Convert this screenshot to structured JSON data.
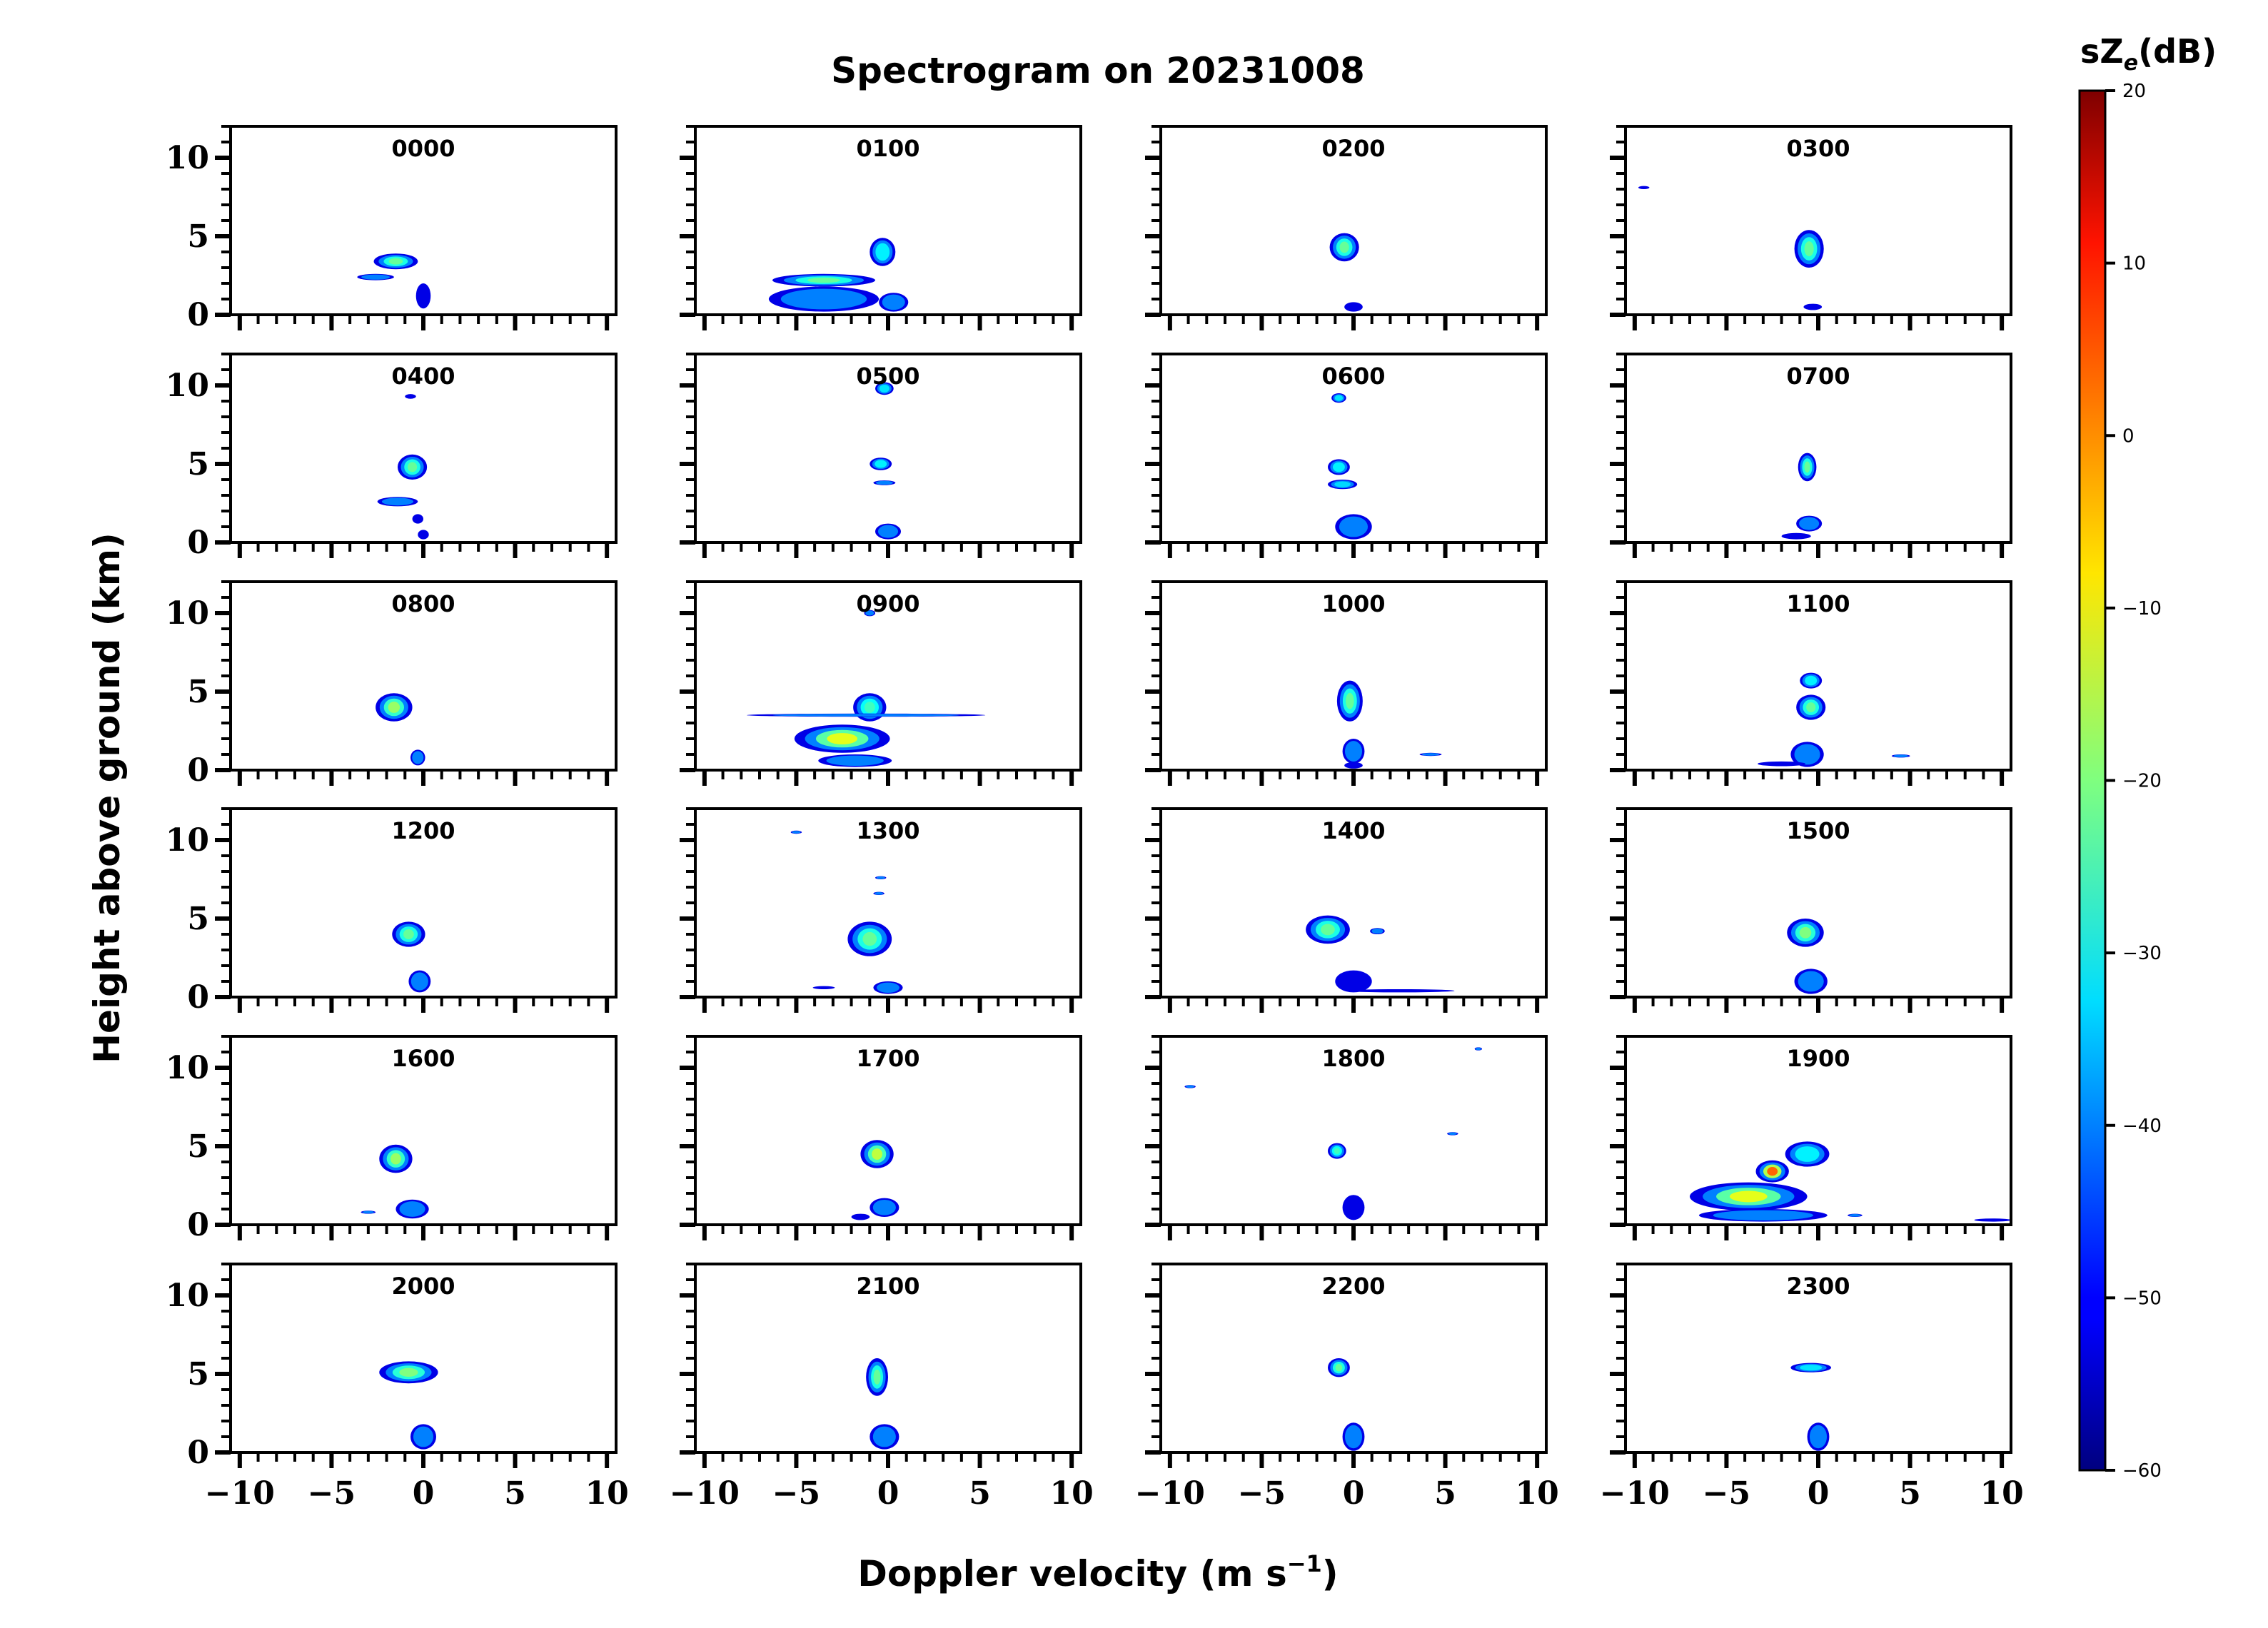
{
  "chart_data": {
    "type": "heatmap",
    "title": "Spectrogram on 20231008",
    "xlabel": "Doppler velocity (m s",
    "xlabel_superscript": "−1",
    "xlabel_close": ")",
    "ylabel": "Height above ground (km)",
    "xlim": [
      -10.5,
      10.5
    ],
    "ylim": [
      0,
      12
    ],
    "x_ticks": [
      -10,
      -5,
      0,
      5,
      10
    ],
    "x_tick_labels": [
      "−10",
      "−5",
      "0",
      "5",
      "10"
    ],
    "y_ticks": [
      0,
      5,
      10
    ],
    "y_tick_labels": [
      "0",
      "5",
      "10"
    ],
    "colorbar": {
      "label_main": "sZ",
      "label_sub": "e",
      "label_unit": "(dB)",
      "range": [
        -60,
        20
      ],
      "ticks": [
        20,
        10,
        0,
        -10,
        -20,
        -30,
        -40,
        -50,
        -60
      ],
      "tick_labels": [
        "20",
        "10",
        "0",
        "−10",
        "−20",
        "−30",
        "−40",
        "−50",
        "−60"
      ],
      "colormap": "jet"
    },
    "panels": [
      {
        "label": "0000",
        "blobs": [
          [
            -1.5,
            3.4,
            1.2,
            0.5,
            -22
          ],
          [
            -2.6,
            2.4,
            1.0,
            0.2,
            -40
          ],
          [
            0,
            1.2,
            0.4,
            0.8,
            -50
          ]
        ]
      },
      {
        "label": "0100",
        "blobs": [
          [
            -3.5,
            2.2,
            2.8,
            0.4,
            -22
          ],
          [
            -0.3,
            4.0,
            0.7,
            0.9,
            -28
          ],
          [
            -3.5,
            1.0,
            3.0,
            0.8,
            -38
          ],
          [
            0.3,
            0.8,
            0.8,
            0.6,
            -45
          ]
        ]
      },
      {
        "label": "0200",
        "blobs": [
          [
            -0.5,
            4.3,
            0.8,
            0.9,
            -22
          ],
          [
            0,
            0.5,
            0.5,
            0.3,
            -50
          ]
        ]
      },
      {
        "label": "0300",
        "blobs": [
          [
            -0.5,
            4.2,
            0.8,
            1.2,
            -22
          ],
          [
            -9.5,
            8.1,
            0.3,
            0.1,
            -50
          ],
          [
            -0.3,
            0.5,
            0.5,
            0.2,
            -50
          ]
        ]
      },
      {
        "label": "0400",
        "blobs": [
          [
            -0.6,
            4.8,
            0.8,
            0.8,
            -22
          ],
          [
            -1.4,
            2.6,
            1.1,
            0.3,
            -35
          ],
          [
            -0.3,
            1.5,
            0.3,
            0.3,
            -50
          ],
          [
            0,
            0.5,
            0.3,
            0.3,
            -50
          ],
          [
            -0.7,
            9.3,
            0.3,
            0.15,
            -50
          ]
        ]
      },
      {
        "label": "0500",
        "blobs": [
          [
            -0.2,
            9.8,
            0.5,
            0.4,
            -30
          ],
          [
            -0.4,
            5.0,
            0.6,
            0.4,
            -28
          ],
          [
            -0.2,
            3.8,
            0.6,
            0.15,
            -45
          ],
          [
            0,
            0.7,
            0.7,
            0.5,
            -45
          ]
        ]
      },
      {
        "label": "0600",
        "blobs": [
          [
            -0.8,
            9.2,
            0.4,
            0.3,
            -30
          ],
          [
            -0.8,
            4.8,
            0.6,
            0.5,
            -28
          ],
          [
            -0.6,
            3.7,
            0.8,
            0.3,
            -32
          ],
          [
            0,
            1.0,
            1.0,
            0.8,
            -45
          ]
        ]
      },
      {
        "label": "0700",
        "blobs": [
          [
            -0.6,
            4.8,
            0.5,
            0.9,
            -22
          ],
          [
            -0.5,
            1.2,
            0.7,
            0.5,
            -45
          ],
          [
            -1.2,
            0.4,
            0.8,
            0.2,
            -50
          ]
        ]
      },
      {
        "label": "0800",
        "blobs": [
          [
            -1.6,
            4.0,
            1.0,
            0.9,
            -18
          ],
          [
            -0.3,
            0.8,
            0.4,
            0.5,
            -45
          ]
        ]
      },
      {
        "label": "0900",
        "blobs": [
          [
            -2.5,
            2.0,
            2.6,
            0.9,
            -12
          ],
          [
            -1.0,
            4.0,
            0.9,
            0.9,
            -25
          ],
          [
            -1.2,
            3.5,
            6.5,
            0.1,
            -35
          ],
          [
            -1.8,
            0.6,
            2.0,
            0.4,
            -45
          ],
          [
            -1.0,
            10.0,
            0.3,
            0.2,
            -35
          ]
        ]
      },
      {
        "label": "1000",
        "blobs": [
          [
            -0.2,
            4.4,
            0.7,
            1.3,
            -22
          ],
          [
            0,
            1.2,
            0.6,
            0.8,
            -40
          ],
          [
            4.2,
            1.0,
            0.6,
            0.1,
            -35
          ],
          [
            0,
            0.3,
            0.5,
            0.2,
            -50
          ]
        ]
      },
      {
        "label": "1100",
        "blobs": [
          [
            -0.4,
            5.7,
            0.6,
            0.5,
            -28
          ],
          [
            -0.4,
            4.0,
            0.8,
            0.8,
            -22
          ],
          [
            -0.6,
            1.0,
            0.9,
            0.8,
            -45
          ],
          [
            4.5,
            0.9,
            0.5,
            0.1,
            -40
          ],
          [
            -2.0,
            0.4,
            1.3,
            0.15,
            -50
          ]
        ]
      },
      {
        "label": "1200",
        "blobs": [
          [
            -0.8,
            4.0,
            0.9,
            0.8,
            -22
          ],
          [
            -0.2,
            1.0,
            0.6,
            0.7,
            -45
          ]
        ]
      },
      {
        "label": "1300",
        "blobs": [
          [
            -1.0,
            3.7,
            1.2,
            1.1,
            -22
          ],
          [
            -0.4,
            7.6,
            0.3,
            0.1,
            -35
          ],
          [
            -0.5,
            6.6,
            0.3,
            0.1,
            -35
          ],
          [
            -5.0,
            10.5,
            0.3,
            0.1,
            -35
          ],
          [
            0,
            0.6,
            0.8,
            0.4,
            -45
          ],
          [
            -3.5,
            0.6,
            0.6,
            0.1,
            -50
          ]
        ]
      },
      {
        "label": "1400",
        "blobs": [
          [
            -1.4,
            4.3,
            1.2,
            0.9,
            -22
          ],
          [
            2.5,
            0.4,
            3.0,
            0.1,
            -50
          ],
          [
            0,
            1.0,
            1.0,
            0.7,
            -48
          ],
          [
            1.3,
            4.2,
            0.4,
            0.2,
            -45
          ]
        ]
      },
      {
        "label": "1500",
        "blobs": [
          [
            -0.7,
            4.1,
            1.0,
            0.9,
            -20
          ],
          [
            -0.4,
            1.0,
            0.9,
            0.8,
            -45
          ]
        ]
      },
      {
        "label": "1600",
        "blobs": [
          [
            -1.5,
            4.2,
            0.9,
            0.9,
            -18
          ],
          [
            -0.6,
            1.0,
            0.9,
            0.6,
            -45
          ],
          [
            -3.0,
            0.8,
            0.4,
            0.1,
            -40
          ]
        ]
      },
      {
        "label": "1700",
        "blobs": [
          [
            -0.6,
            4.5,
            0.9,
            0.9,
            -15
          ],
          [
            -0.2,
            1.1,
            0.8,
            0.6,
            -45
          ],
          [
            -1.5,
            0.5,
            0.5,
            0.2,
            -50
          ]
        ]
      },
      {
        "label": "1800",
        "blobs": [
          [
            -0.9,
            4.7,
            0.5,
            0.5,
            -25
          ],
          [
            0,
            1.1,
            0.6,
            0.8,
            -48
          ],
          [
            -8.9,
            8.8,
            0.3,
            0.1,
            -35
          ],
          [
            5.4,
            5.8,
            0.3,
            0.1,
            -40
          ],
          [
            6.8,
            11.2,
            0.2,
            0.1,
            -45
          ]
        ]
      },
      {
        "label": "1900",
        "blobs": [
          [
            -3.8,
            1.8,
            3.2,
            0.9,
            -12
          ],
          [
            -2.5,
            3.4,
            0.9,
            0.7,
            2
          ],
          [
            -0.6,
            4.5,
            1.2,
            0.8,
            -28
          ],
          [
            -3.0,
            0.6,
            3.5,
            0.4,
            -45
          ],
          [
            9.5,
            0.3,
            1.0,
            0.1,
            -50
          ],
          [
            2.0,
            0.6,
            0.4,
            0.1,
            -40
          ]
        ]
      },
      {
        "label": "2000",
        "blobs": [
          [
            -0.8,
            5.1,
            1.6,
            0.7,
            -20
          ],
          [
            0,
            1.0,
            0.7,
            0.8,
            -45
          ]
        ]
      },
      {
        "label": "2100",
        "blobs": [
          [
            -0.6,
            4.8,
            0.6,
            1.2,
            -22
          ],
          [
            -0.2,
            1.0,
            0.8,
            0.8,
            -45
          ]
        ]
      },
      {
        "label": "2200",
        "blobs": [
          [
            -0.8,
            5.4,
            0.6,
            0.6,
            -22
          ],
          [
            0,
            1.0,
            0.6,
            0.9,
            -45
          ]
        ]
      },
      {
        "label": "2300",
        "blobs": [
          [
            -0.4,
            5.4,
            1.1,
            0.3,
            -30
          ],
          [
            0,
            1.0,
            0.6,
            0.9,
            -45
          ]
        ]
      }
    ]
  }
}
